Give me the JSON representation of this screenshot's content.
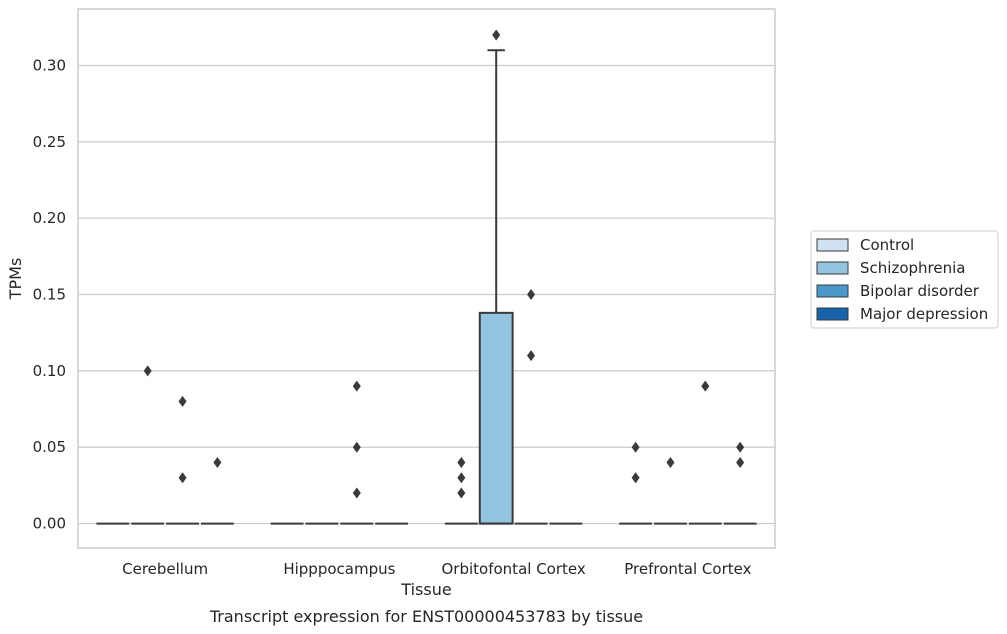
{
  "chart_data": {
    "type": "box",
    "title": "",
    "xlabel": "Tissue",
    "ylabel": "TPMs",
    "caption": "Transcript expression for ENST00000453783 by tissue",
    "categories": [
      "Cerebellum",
      "Hipppocampus",
      "Orbitofontal Cortex",
      "Prefrontal Cortex"
    ],
    "ylim": [
      -0.016,
      0.337
    ],
    "yticks": [
      0.0,
      0.05,
      0.1,
      0.15,
      0.2,
      0.25,
      0.3
    ],
    "ytick_labels": [
      "0.00",
      "0.05",
      "0.10",
      "0.15",
      "0.20",
      "0.25",
      "0.30"
    ],
    "grid": true,
    "legend_position": "right",
    "series": [
      {
        "name": "Control",
        "color": "#d0e1f2",
        "boxes": [
          {
            "q1": 0,
            "median": 0,
            "q3": 0,
            "whisker_low": 0,
            "whisker_high": 0,
            "outliers": []
          },
          {
            "q1": 0,
            "median": 0,
            "q3": 0,
            "whisker_low": 0,
            "whisker_high": 0,
            "outliers": []
          },
          {
            "q1": 0,
            "median": 0,
            "q3": 0,
            "whisker_low": 0,
            "whisker_high": 0,
            "outliers": [
              0.02,
              0.03,
              0.04
            ]
          },
          {
            "q1": 0,
            "median": 0,
            "q3": 0,
            "whisker_low": 0,
            "whisker_high": 0,
            "outliers": [
              0.03,
              0.05
            ]
          }
        ]
      },
      {
        "name": "Schizophrenia",
        "color": "#94c4df",
        "boxes": [
          {
            "q1": 0,
            "median": 0,
            "q3": 0,
            "whisker_low": 0,
            "whisker_high": 0,
            "outliers": [
              0.1
            ]
          },
          {
            "q1": 0,
            "median": 0,
            "q3": 0,
            "whisker_low": 0,
            "whisker_high": 0,
            "outliers": []
          },
          {
            "q1": 0,
            "median": 0,
            "q3": 0.138,
            "whisker_low": 0,
            "whisker_high": 0.31,
            "outliers": [
              0.32
            ]
          },
          {
            "q1": 0,
            "median": 0,
            "q3": 0,
            "whisker_low": 0,
            "whisker_high": 0,
            "outliers": [
              0.04
            ]
          }
        ]
      },
      {
        "name": "Bipolar disorder",
        "color": "#4a98c9",
        "boxes": [
          {
            "q1": 0,
            "median": 0,
            "q3": 0,
            "whisker_low": 0,
            "whisker_high": 0,
            "outliers": [
              0.03,
              0.08
            ]
          },
          {
            "q1": 0,
            "median": 0,
            "q3": 0,
            "whisker_low": 0,
            "whisker_high": 0,
            "outliers": [
              0.02,
              0.05,
              0.09
            ]
          },
          {
            "q1": 0,
            "median": 0,
            "q3": 0,
            "whisker_low": 0,
            "whisker_high": 0,
            "outliers": [
              0.11,
              0.15
            ]
          },
          {
            "q1": 0,
            "median": 0,
            "q3": 0,
            "whisker_low": 0,
            "whisker_high": 0,
            "outliers": [
              0.09
            ]
          }
        ]
      },
      {
        "name": "Major depression",
        "color": "#1764ab",
        "boxes": [
          {
            "q1": 0,
            "median": 0,
            "q3": 0,
            "whisker_low": 0,
            "whisker_high": 0,
            "outliers": [
              0.04
            ]
          },
          {
            "q1": 0,
            "median": 0,
            "q3": 0,
            "whisker_low": 0,
            "whisker_high": 0,
            "outliers": []
          },
          {
            "q1": 0,
            "median": 0,
            "q3": 0,
            "whisker_low": 0,
            "whisker_high": 0,
            "outliers": []
          },
          {
            "q1": 0,
            "median": 0,
            "q3": 0,
            "whisker_low": 0,
            "whisker_high": 0,
            "outliers": [
              0.04,
              0.05
            ]
          }
        ]
      }
    ]
  }
}
